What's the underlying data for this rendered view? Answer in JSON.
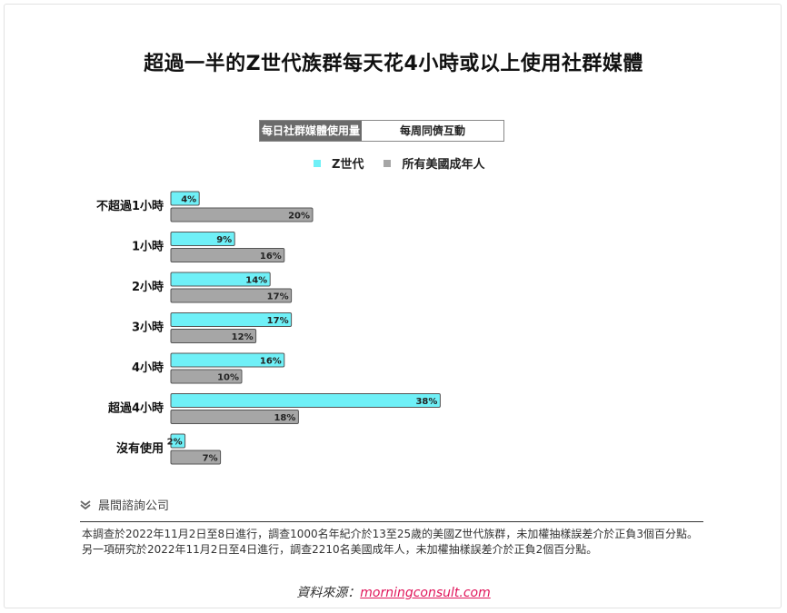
{
  "title": "超過一半的Z世代族群每天花4小時或以上使用社群媒體",
  "tabs": [
    {
      "label": "每日社群媒體使用量",
      "active": true
    },
    {
      "label": "每周同儕互動",
      "active": false
    }
  ],
  "colors": {
    "gen_z": "#6ff0f7",
    "adults": "#a6a6a6",
    "bar_border": "#555555",
    "brand_link": "#e0155a"
  },
  "source_org": "晨間諮詢公司",
  "note": "本調查於2022年11月2日至8日進行，調查1000名年紀介於13至25歲的美國Z世代族群，未加權抽樣誤差介於正負3個百分點。另一項研究於2022年11月2日至4日進行，調查2210名美國成年人，未加權抽樣誤差介於正負2個百分點。",
  "credit": {
    "prefix": "資料來源：",
    "link": "morningconsult.com"
  },
  "chart_data": {
    "type": "bar",
    "orientation": "horizontal",
    "title": "超過一半的Z世代族群每天花4小時或以上使用社群媒體",
    "categories": [
      "不超過1小時",
      "1小時",
      "2小時",
      "3小時",
      "4小時",
      "超過4小時",
      "沒有使用"
    ],
    "series": [
      {
        "name": "Z世代",
        "values": [
          4,
          9,
          14,
          17,
          16,
          38,
          2
        ],
        "color": "#6ff0f7"
      },
      {
        "name": "所有美國成年人",
        "values": [
          20,
          16,
          17,
          12,
          10,
          18,
          7
        ],
        "color": "#a6a6a6"
      }
    ],
    "value_suffix": "%",
    "xlim": [
      0,
      40
    ],
    "grid": false,
    "legend_position": "top"
  }
}
